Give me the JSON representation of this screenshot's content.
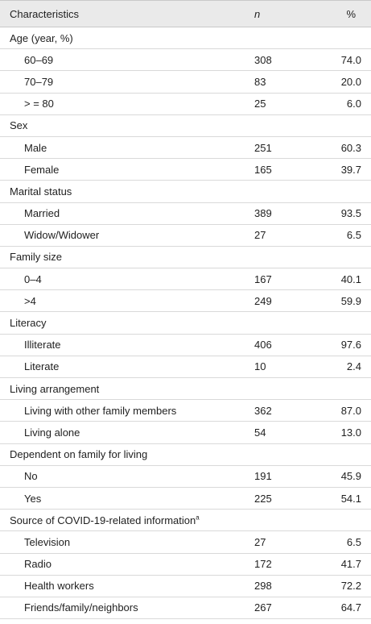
{
  "table": {
    "headers": {
      "characteristics": "Characteristics",
      "n": "n",
      "percent": "%"
    },
    "sections": [
      {
        "title": "Age (year, %)",
        "rows": [
          {
            "label": "60–69",
            "n": "308",
            "pct": "74.0"
          },
          {
            "label": "70–79",
            "n": "83",
            "pct": "20.0"
          },
          {
            "label": "> = 80",
            "n": "25",
            "pct": "6.0"
          }
        ]
      },
      {
        "title": "Sex",
        "rows": [
          {
            "label": "Male",
            "n": "251",
            "pct": "60.3"
          },
          {
            "label": "Female",
            "n": "165",
            "pct": "39.7"
          }
        ]
      },
      {
        "title": "Marital status",
        "rows": [
          {
            "label": "Married",
            "n": "389",
            "pct": "93.5"
          },
          {
            "label": "Widow/Widower",
            "n": "27",
            "pct": "6.5"
          }
        ]
      },
      {
        "title": "Family size",
        "rows": [
          {
            "label": "0–4",
            "n": "167",
            "pct": "40.1"
          },
          {
            "label": ">4",
            "n": "249",
            "pct": "59.9"
          }
        ]
      },
      {
        "title": "Literacy",
        "rows": [
          {
            "label": "Illiterate",
            "n": "406",
            "pct": "97.6"
          },
          {
            "label": "Literate",
            "n": "10",
            "pct": "2.4"
          }
        ]
      },
      {
        "title": "Living arrangement",
        "rows": [
          {
            "label": "Living with other family members",
            "n": "362",
            "pct": "87.0"
          },
          {
            "label": "Living alone",
            "n": "54",
            "pct": "13.0"
          }
        ]
      },
      {
        "title": "Dependent on family for living",
        "rows": [
          {
            "label": "No",
            "n": "191",
            "pct": "45.9"
          },
          {
            "label": "Yes",
            "n": "225",
            "pct": "54.1"
          }
        ]
      },
      {
        "title": "Source of COVID-19-related information",
        "title_sup": "a",
        "rows": [
          {
            "label": "Television",
            "n": "27",
            "pct": "6.5"
          },
          {
            "label": "Radio",
            "n": "172",
            "pct": "41.7"
          },
          {
            "label": "Health workers",
            "n": "298",
            "pct": "72.2"
          },
          {
            "label": "Friends/family/neighbors",
            "n": "267",
            "pct": "64.7"
          }
        ]
      }
    ]
  }
}
